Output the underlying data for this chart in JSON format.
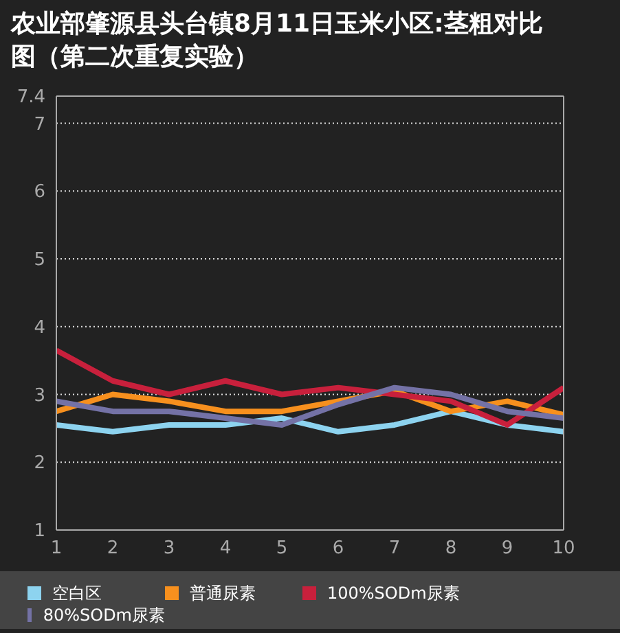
{
  "chart_data": {
    "type": "line",
    "title": "农业部肇源县头台镇8月11日玉米小区:茎粗对比图（第二次重复实验）",
    "x": [
      1,
      2,
      3,
      4,
      5,
      6,
      7,
      8,
      9,
      10
    ],
    "xlim": [
      1,
      10
    ],
    "xticks": [
      1,
      2,
      3,
      4,
      5,
      6,
      7,
      8,
      9,
      10
    ],
    "ylim": [
      1,
      7.4
    ],
    "yticks": [
      1,
      2,
      3,
      4,
      5,
      6,
      7,
      7.4
    ],
    "grid": "y",
    "legend": "bottom",
    "marker": "none",
    "line_style": "solid",
    "series": [
      {
        "name": "空白区",
        "color": "#8dd3ef",
        "values": [
          2.55,
          2.45,
          2.55,
          2.55,
          2.65,
          2.45,
          2.55,
          2.75,
          2.55,
          2.45
        ]
      },
      {
        "name": "普通尿素",
        "color": "#f7901e",
        "values": [
          2.75,
          3.0,
          2.9,
          2.75,
          2.75,
          2.9,
          3.05,
          2.75,
          2.9,
          2.7
        ]
      },
      {
        "name": "100%SODm尿素",
        "color": "#c8203c",
        "values": [
          3.65,
          3.2,
          3.0,
          3.2,
          3.0,
          3.1,
          3.0,
          2.9,
          2.55,
          3.1
        ]
      },
      {
        "name": "80%SODm尿素",
        "color": "#7472a6",
        "values": [
          2.9,
          2.75,
          2.75,
          2.65,
          2.55,
          2.85,
          3.1,
          3.0,
          2.75,
          2.65
        ]
      }
    ]
  }
}
